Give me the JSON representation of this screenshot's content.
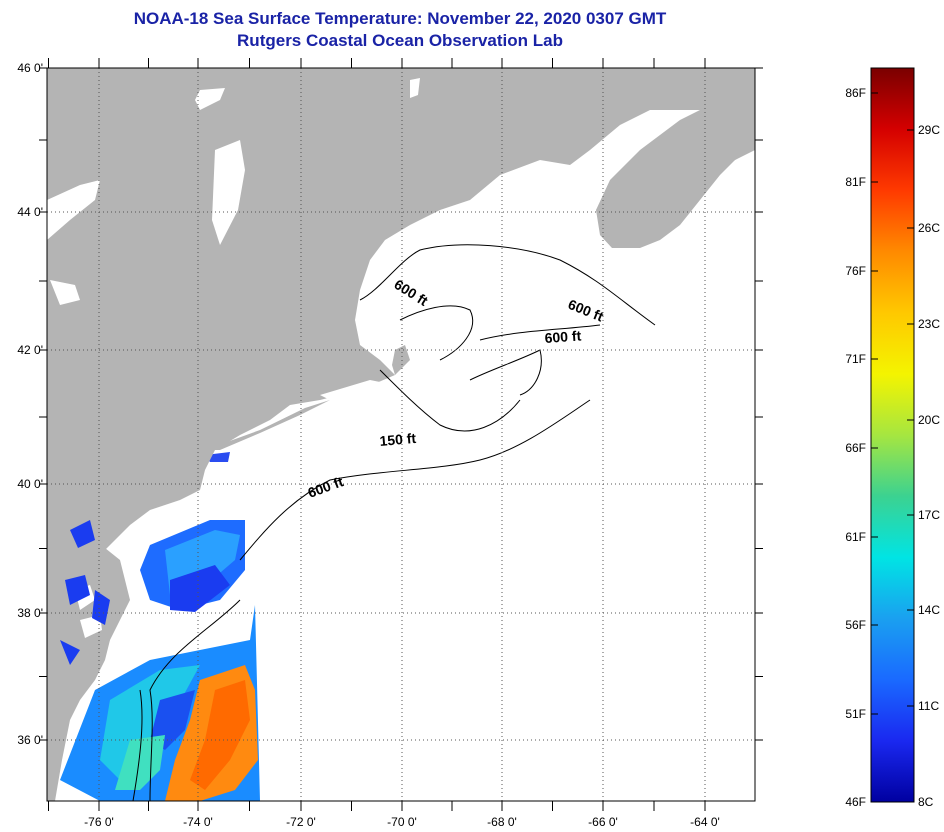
{
  "title": {
    "line1": "NOAA-18 Sea Surface Temperature:  November 22, 2020 0307 GMT",
    "line2": "Rutgers Coastal Ocean Observation Lab"
  },
  "map": {
    "lat_labels": [
      "46 0'",
      "44 0'",
      "42 0'",
      "40 0'",
      "38 0'",
      "36 0'"
    ],
    "lon_labels": [
      "-76 0'",
      "-74 0'",
      "-72 0'",
      "-70 0'",
      "-68 0'",
      "-66 0'",
      "-64 0'"
    ],
    "contour_labels": [
      "600 ft",
      "600 ft",
      "600 ft",
      "150 ft",
      "600 ft"
    ],
    "colors": {
      "land": "#b4b4b4",
      "ocean_nodata": "#ffffff",
      "grid": "#555555"
    }
  },
  "colorbar": {
    "fahrenheit_labels": [
      "86F",
      "81F",
      "76F",
      "71F",
      "66F",
      "61F",
      "56F",
      "51F",
      "46F"
    ],
    "celsius_labels": [
      "29C",
      "26C",
      "23C",
      "20C",
      "17C",
      "14C",
      "11C",
      "8C"
    ],
    "gradient_colors": [
      "#7a0000",
      "#d40000",
      "#ff3a00",
      "#ff8a00",
      "#ffc800",
      "#f4f400",
      "#a6e640",
      "#3cd290",
      "#00e4e4",
      "#1aa0f0",
      "#1a6aff",
      "#1a28f0",
      "#0000a0"
    ]
  }
}
